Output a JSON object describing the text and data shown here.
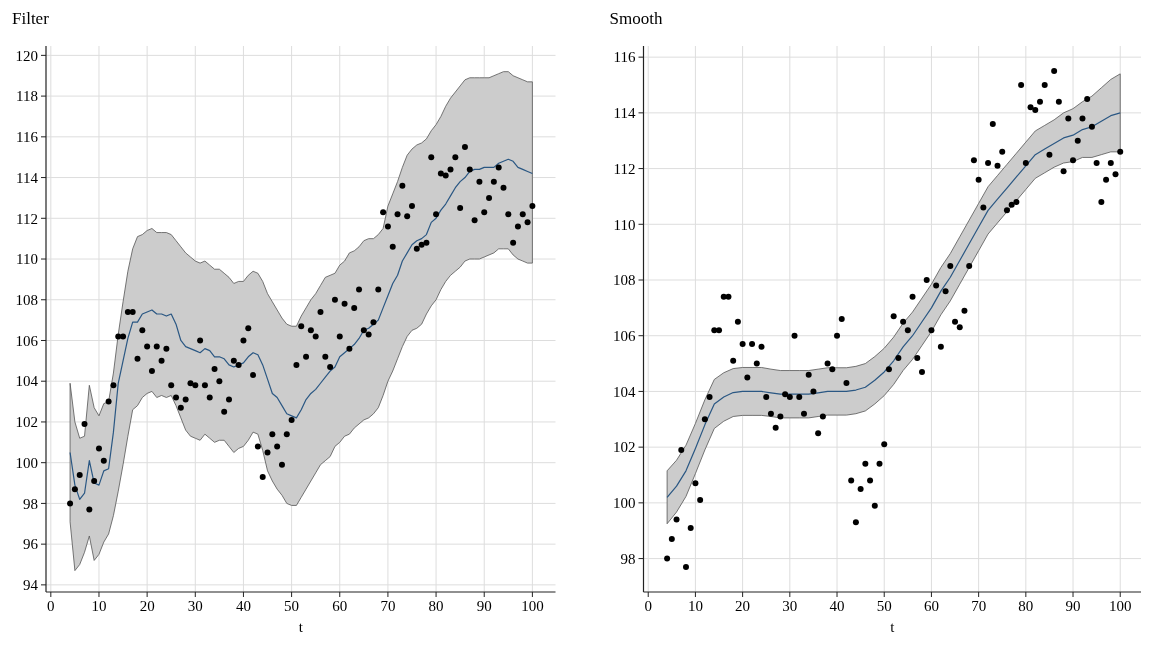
{
  "chart_data": [
    {
      "type": "scatter",
      "title": "Filter",
      "xlabel": "t",
      "xlim": [
        -1,
        104.8
      ],
      "ylim": [
        93.65,
        120.46
      ],
      "xticks": [
        0,
        10,
        20,
        30,
        40,
        50,
        60,
        70,
        80,
        90,
        100
      ],
      "yticks": [
        94,
        96,
        98,
        100,
        102,
        104,
        106,
        108,
        110,
        112,
        114,
        116,
        118,
        120
      ],
      "grid": true,
      "series": [
        {
          "color": "#000000",
          "marker": "circle",
          "x": [
            4,
            5,
            6,
            7,
            8,
            9,
            10,
            11,
            12,
            13,
            14,
            15,
            16,
            17,
            18,
            19,
            20,
            21,
            22,
            23,
            24,
            25,
            26,
            27,
            28,
            29,
            30,
            31,
            32,
            33,
            34,
            35,
            36,
            37,
            38,
            39,
            40,
            41,
            42,
            43,
            44,
            45,
            46,
            47,
            48,
            49,
            50,
            51,
            52,
            53,
            54,
            55,
            56,
            57,
            58,
            59,
            60,
            61,
            62,
            63,
            64,
            65,
            66,
            67,
            68,
            69,
            70,
            71,
            72,
            73,
            74,
            75,
            76,
            77,
            78,
            79,
            80,
            81,
            82,
            83,
            84,
            85,
            86,
            87,
            88,
            89,
            90,
            91,
            92,
            93,
            94,
            95,
            96,
            97,
            98,
            99,
            100
          ],
          "values": [
            98.0,
            98.7,
            99.4,
            101.9,
            97.7,
            99.1,
            100.7,
            100.1,
            103.0,
            103.8,
            106.2,
            106.2,
            107.4,
            107.4,
            105.1,
            106.5,
            105.7,
            104.5,
            105.7,
            105.0,
            105.6,
            103.8,
            103.2,
            102.7,
            103.1,
            103.9,
            103.8,
            106.0,
            103.8,
            103.2,
            104.6,
            104.0,
            102.5,
            103.1,
            105.0,
            104.8,
            106.0,
            106.6,
            104.3,
            100.8,
            99.3,
            100.5,
            101.4,
            100.8,
            99.9,
            101.4,
            102.1,
            104.8,
            106.7,
            105.2,
            106.5,
            106.2,
            107.4,
            105.2,
            104.7,
            108.0,
            106.2,
            107.8,
            105.6,
            107.6,
            108.5,
            106.5,
            106.3,
            106.9,
            108.5,
            112.3,
            111.6,
            110.6,
            112.2,
            113.6,
            112.1,
            112.6,
            110.5,
            110.7,
            110.8,
            115.0,
            112.2,
            114.2,
            114.1,
            114.4,
            115.0,
            112.5,
            115.5,
            114.4,
            111.9,
            113.8,
            112.3,
            113.0,
            113.8,
            114.5,
            113.5,
            112.2,
            110.8,
            111.6,
            112.2,
            111.8,
            112.6
          ]
        },
        {
          "type": "line",
          "color": "#2a5783",
          "marker": "none",
          "line_style": "solid",
          "x": [
            4,
            5,
            6,
            7,
            8,
            9,
            10,
            11,
            12,
            13,
            14,
            15,
            16,
            17,
            18,
            19,
            20,
            21,
            22,
            23,
            24,
            25,
            26,
            27,
            28,
            29,
            30,
            31,
            32,
            33,
            34,
            35,
            36,
            37,
            38,
            39,
            40,
            41,
            42,
            43,
            44,
            45,
            46,
            47,
            48,
            49,
            50,
            51,
            52,
            53,
            54,
            55,
            56,
            57,
            58,
            59,
            60,
            61,
            62,
            63,
            64,
            65,
            66,
            67,
            68,
            69,
            70,
            71,
            72,
            73,
            74,
            75,
            76,
            77,
            78,
            79,
            80,
            81,
            82,
            83,
            84,
            85,
            86,
            87,
            88,
            89,
            90,
            91,
            92,
            93,
            94,
            95,
            96,
            97,
            98,
            99,
            100
          ],
          "values": [
            100.5,
            98.9,
            98.2,
            98.5,
            100.1,
            99.0,
            98.9,
            99.6,
            99.7,
            101.5,
            103.9,
            105.0,
            106.1,
            106.9,
            106.9,
            107.3,
            107.4,
            107.5,
            107.3,
            107.3,
            107.2,
            107.3,
            106.8,
            106.0,
            105.7,
            105.6,
            105.5,
            105.4,
            105.6,
            105.5,
            105.2,
            105.2,
            105.1,
            104.8,
            104.7,
            104.8,
            104.9,
            105.2,
            105.4,
            105.3,
            104.8,
            104.1,
            103.4,
            103.2,
            102.8,
            102.4,
            102.3,
            102.2,
            102.6,
            103.1,
            103.4,
            103.6,
            103.9,
            104.2,
            104.5,
            104.7,
            105.2,
            105.4,
            105.6,
            105.8,
            106.1,
            106.5,
            106.6,
            106.8,
            107.0,
            107.6,
            108.2,
            108.8,
            109.2,
            109.9,
            110.3,
            110.7,
            110.9,
            111.0,
            111.2,
            111.8,
            112.0,
            112.4,
            112.7,
            113.1,
            113.5,
            113.8,
            114.0,
            114.3,
            114.4,
            114.4,
            114.5,
            114.5,
            114.5,
            114.7,
            114.8,
            114.9,
            114.8,
            114.5,
            114.4,
            114.3,
            114.2
          ],
          "lower": [
            97.1,
            94.7,
            95.0,
            95.6,
            96.4,
            95.2,
            95.5,
            96.1,
            96.5,
            97.4,
            98.6,
            99.9,
            101.3,
            102.6,
            102.8,
            103.2,
            103.4,
            103.5,
            103.2,
            103.3,
            103.2,
            103.3,
            102.8,
            102.2,
            101.6,
            101.3,
            101.2,
            101.1,
            101.4,
            101.2,
            101.0,
            101.1,
            101.1,
            100.8,
            100.5,
            100.7,
            100.8,
            101.1,
            101.5,
            101.4,
            100.6,
            99.6,
            99.1,
            98.7,
            98.4,
            98.0,
            97.9,
            97.9,
            98.3,
            98.7,
            99.1,
            99.5,
            99.9,
            100.1,
            100.3,
            100.8,
            101.0,
            101.3,
            101.4,
            101.7,
            101.9,
            102.1,
            102.2,
            102.4,
            102.7,
            103.3,
            104.0,
            104.5,
            105.1,
            105.7,
            106.2,
            106.5,
            106.6,
            106.8,
            107.3,
            107.7,
            108.0,
            108.5,
            108.9,
            109.2,
            109.4,
            109.6,
            109.9,
            110.0,
            110.0,
            110.0,
            110.1,
            110.2,
            110.3,
            110.5,
            110.5,
            110.5,
            110.2,
            110.0,
            109.9,
            109.8,
            109.8
          ],
          "upper": [
            103.9,
            102.0,
            101.2,
            101.3,
            103.8,
            102.7,
            102.3,
            102.9,
            103.0,
            104.4,
            106.3,
            107.9,
            109.4,
            110.5,
            111.1,
            111.2,
            111.4,
            111.5,
            111.3,
            111.3,
            111.3,
            111.2,
            110.9,
            110.6,
            110.3,
            110.1,
            109.9,
            109.8,
            109.9,
            109.7,
            109.5,
            109.5,
            109.3,
            109.1,
            108.8,
            108.9,
            108.9,
            109.2,
            109.4,
            109.3,
            108.9,
            108.3,
            107.9,
            107.5,
            107.1,
            106.8,
            106.7,
            106.7,
            107.2,
            107.6,
            108.0,
            108.3,
            108.7,
            109.1,
            109.2,
            109.3,
            109.7,
            109.9,
            110.3,
            110.4,
            110.6,
            110.9,
            111.0,
            111.0,
            111.2,
            111.5,
            112.6,
            113.2,
            113.8,
            114.5,
            115.1,
            115.4,
            115.6,
            115.7,
            115.9,
            116.3,
            116.6,
            117.0,
            117.5,
            117.9,
            118.2,
            118.5,
            118.8,
            118.9,
            118.9,
            118.9,
            118.9,
            118.9,
            119.0,
            119.1,
            119.2,
            119.2,
            119.0,
            118.9,
            118.8,
            118.7,
            118.7
          ]
        }
      ]
    },
    {
      "type": "scatter",
      "title": "Smooth",
      "xlabel": "t",
      "xlim": [
        -1,
        104.4
      ],
      "ylim": [
        96.8,
        116.4
      ],
      "xticks": [
        0,
        10,
        20,
        30,
        40,
        50,
        60,
        70,
        80,
        90,
        100
      ],
      "yticks": [
        98,
        100,
        102,
        104,
        106,
        108,
        110,
        112,
        114,
        116
      ],
      "grid": true,
      "series": [
        {
          "color": "#000000",
          "marker": "circle",
          "x": [
            4,
            5,
            6,
            7,
            8,
            9,
            10,
            11,
            12,
            13,
            14,
            15,
            16,
            17,
            18,
            19,
            20,
            21,
            22,
            23,
            24,
            25,
            26,
            27,
            28,
            29,
            30,
            31,
            32,
            33,
            34,
            35,
            36,
            37,
            38,
            39,
            40,
            41,
            42,
            43,
            44,
            45,
            46,
            47,
            48,
            49,
            50,
            51,
            52,
            53,
            54,
            55,
            56,
            57,
            58,
            59,
            60,
            61,
            62,
            63,
            64,
            65,
            66,
            67,
            68,
            69,
            70,
            71,
            72,
            73,
            74,
            75,
            76,
            77,
            78,
            79,
            80,
            81,
            82,
            83,
            84,
            85,
            86,
            87,
            88,
            89,
            90,
            91,
            92,
            93,
            94,
            95,
            96,
            97,
            98,
            99,
            100
          ],
          "values": [
            98.0,
            98.7,
            99.4,
            101.9,
            97.7,
            99.1,
            100.7,
            100.1,
            103.0,
            103.8,
            106.2,
            106.2,
            107.4,
            107.4,
            105.1,
            106.5,
            105.7,
            104.5,
            105.7,
            105.0,
            105.6,
            103.8,
            103.2,
            102.7,
            103.1,
            103.9,
            103.8,
            106.0,
            103.8,
            103.2,
            104.6,
            104.0,
            102.5,
            103.1,
            105.0,
            104.8,
            106.0,
            106.6,
            104.3,
            100.8,
            99.3,
            100.5,
            101.4,
            100.8,
            99.9,
            101.4,
            102.1,
            104.8,
            106.7,
            105.2,
            106.5,
            106.2,
            107.4,
            105.2,
            104.7,
            108.0,
            106.2,
            107.8,
            105.6,
            107.6,
            108.5,
            106.5,
            106.3,
            106.9,
            108.5,
            112.3,
            111.6,
            110.6,
            112.2,
            113.6,
            112.1,
            112.6,
            110.5,
            110.7,
            110.8,
            115.0,
            112.2,
            114.2,
            114.1,
            114.4,
            115.0,
            112.5,
            115.5,
            114.4,
            111.9,
            113.8,
            112.3,
            113.0,
            113.8,
            114.5,
            113.5,
            112.2,
            110.8,
            111.6,
            112.2,
            111.8,
            112.6
          ]
        },
        {
          "type": "line",
          "color": "#2a5783",
          "marker": "none",
          "line_style": "solid",
          "x": [
            4,
            6,
            8,
            10,
            12,
            14,
            16,
            18,
            20,
            22,
            24,
            26,
            28,
            30,
            32,
            34,
            36,
            38,
            40,
            42,
            44,
            46,
            48,
            50,
            52,
            54,
            56,
            58,
            60,
            62,
            64,
            66,
            68,
            70,
            72,
            74,
            76,
            78,
            80,
            82,
            84,
            86,
            88,
            90,
            92,
            94,
            96,
            98,
            100
          ],
          "values": [
            100.2,
            100.6,
            101.15,
            101.95,
            102.8,
            103.55,
            103.8,
            103.96,
            104.0,
            104.0,
            104.0,
            103.95,
            103.9,
            103.9,
            103.9,
            103.9,
            103.95,
            104.0,
            104.0,
            104.0,
            104.05,
            104.15,
            104.4,
            104.7,
            105.1,
            105.6,
            106.0,
            106.5,
            107.0,
            107.6,
            108.1,
            108.7,
            109.3,
            109.9,
            110.5,
            110.9,
            111.3,
            111.7,
            112.1,
            112.5,
            112.7,
            112.9,
            113.1,
            113.2,
            113.4,
            113.5,
            113.7,
            113.9,
            114.0
          ],
          "lower": [
            99.25,
            99.67,
            100.23,
            101.05,
            101.9,
            102.67,
            102.93,
            103.1,
            103.14,
            103.14,
            103.14,
            103.1,
            103.05,
            103.05,
            103.05,
            103.05,
            103.1,
            103.15,
            103.15,
            103.15,
            103.2,
            103.3,
            103.55,
            103.85,
            104.25,
            104.75,
            105.15,
            105.65,
            106.15,
            106.75,
            107.25,
            107.85,
            108.45,
            109.05,
            109.65,
            110.05,
            110.45,
            110.85,
            111.25,
            111.65,
            111.85,
            112.05,
            112.2,
            112.25,
            112.4,
            112.4,
            112.5,
            112.6,
            112.6
          ],
          "upper": [
            101.15,
            101.53,
            102.07,
            102.85,
            103.7,
            104.43,
            104.67,
            104.82,
            104.86,
            104.86,
            104.86,
            104.8,
            104.75,
            104.75,
            104.75,
            104.75,
            104.8,
            104.85,
            104.85,
            104.85,
            104.9,
            105.0,
            105.25,
            105.55,
            105.95,
            106.45,
            106.85,
            107.35,
            107.85,
            108.45,
            108.95,
            109.55,
            110.15,
            110.75,
            111.35,
            111.75,
            112.15,
            112.55,
            112.95,
            113.35,
            113.55,
            113.75,
            114.0,
            114.15,
            114.4,
            114.6,
            114.9,
            115.2,
            115.4
          ]
        }
      ]
    }
  ]
}
